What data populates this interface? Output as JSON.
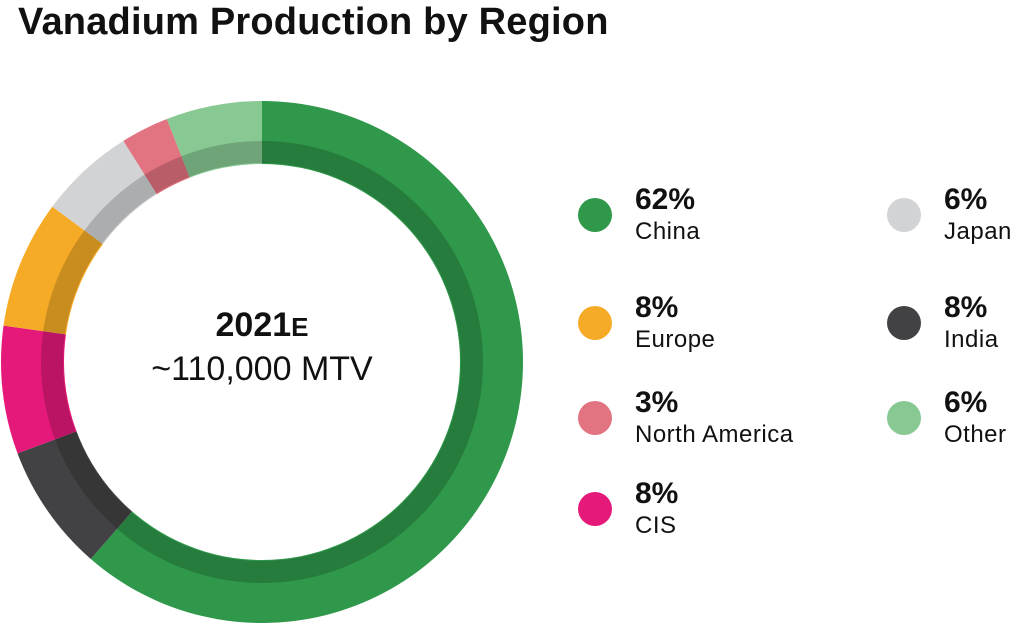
{
  "chart_data": {
    "type": "pie",
    "title": "Vanadium Production by Region",
    "center_label": {
      "year": "2021",
      "year_suffix": "E",
      "total": "~110,000 MTV"
    },
    "slices": [
      {
        "label": "China",
        "value": 62,
        "display": "62%",
        "color": "#2f984a"
      },
      {
        "label": "India",
        "value": 8,
        "display": "8%",
        "color": "#424244"
      },
      {
        "label": "CIS",
        "value": 8,
        "display": "8%",
        "color": "#e5197a"
      },
      {
        "label": "Europe",
        "value": 8,
        "display": "8%",
        "color": "#f6ab26"
      },
      {
        "label": "Japan",
        "value": 6,
        "display": "6%",
        "color": "#d2d3d5"
      },
      {
        "label": "North America",
        "value": 3,
        "display": "3%",
        "color": "#e27380"
      },
      {
        "label": "Other",
        "value": 6,
        "display": "6%",
        "color": "#88c993"
      }
    ]
  },
  "legend": [
    {
      "pct": "62%",
      "name": "China",
      "color": "#2f984a"
    },
    {
      "pct": "8%",
      "name": "Europe",
      "color": "#f6ab26"
    },
    {
      "pct": "3%",
      "name": "North America",
      "color": "#e27380"
    },
    {
      "pct": "8%",
      "name": "CIS",
      "color": "#e5197a"
    },
    {
      "pct": "6%",
      "name": "Japan",
      "color": "#d2d3d5"
    },
    {
      "pct": "8%",
      "name": "India",
      "color": "#424244"
    },
    {
      "pct": "6%",
      "name": "Other",
      "color": "#88c993"
    }
  ]
}
